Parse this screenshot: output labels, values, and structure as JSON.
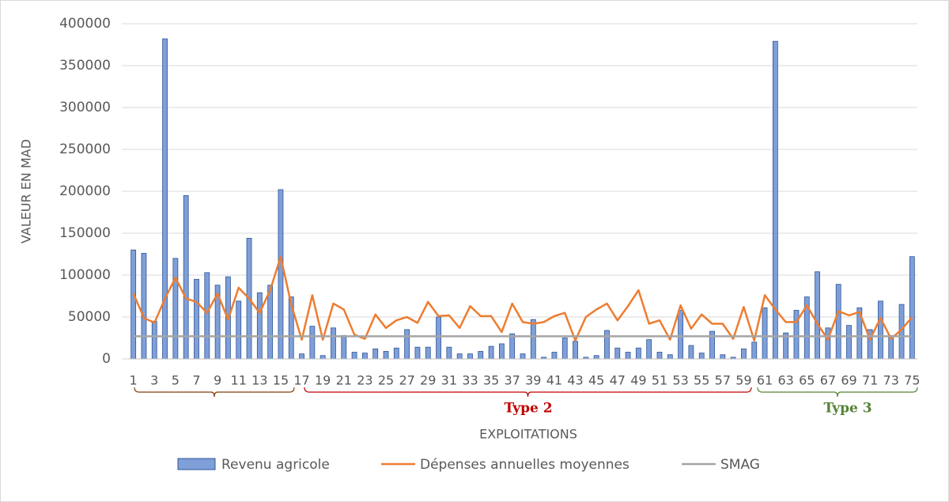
{
  "chart_data": {
    "type": "bar_line",
    "y_label": "VALEUR EN MAD",
    "x_label": "EXPLOITATIONS",
    "categories": [
      "1",
      null,
      "3",
      null,
      "5",
      null,
      "7",
      null,
      "9",
      null,
      "11",
      null,
      "13",
      null,
      "15",
      null,
      "17",
      null,
      "19",
      null,
      "21",
      null,
      "23",
      null,
      "25",
      null,
      "27",
      null,
      "29",
      null,
      "31",
      null,
      "33",
      null,
      "35",
      null,
      "37",
      null,
      "39",
      null,
      "41",
      null,
      "43",
      null,
      "45",
      null,
      "47",
      null,
      "49",
      null,
      "51",
      null,
      "53",
      null,
      "55",
      null,
      "57",
      null,
      "59",
      null,
      "61",
      null,
      "63",
      null,
      "65",
      null,
      "67",
      null,
      "69",
      null,
      "71",
      null,
      "73",
      null,
      "75"
    ],
    "series": [
      {
        "name": "Revenu agricole",
        "kind": "bar",
        "color": "#7f9fd8",
        "stroke": "#2f5597",
        "values": [
          130000,
          126000,
          45000,
          382000,
          120000,
          195000,
          95000,
          103000,
          88000,
          98000,
          69000,
          144000,
          79000,
          88000,
          202000,
          74000,
          6000,
          39000,
          4000,
          37000,
          28000,
          8000,
          7000,
          12000,
          9000,
          13000,
          35000,
          14000,
          14000,
          50000,
          14000,
          6000,
          6000,
          9000,
          15000,
          18000,
          30000,
          6000,
          47000,
          2000,
          8000,
          25000,
          21000,
          2000,
          4000,
          34000,
          13000,
          8000,
          13000,
          23000,
          8000,
          5000,
          58000,
          16000,
          7000,
          33000,
          5000,
          2000,
          12000,
          20000,
          61000,
          379000,
          31000,
          58000,
          74000,
          104000,
          37000,
          89000,
          40000,
          61000,
          35000,
          69000,
          28000,
          65000,
          122000
        ]
      },
      {
        "name": "Dépenses annuelles moyennes",
        "kind": "line",
        "color": "#ed7d31",
        "values": [
          78000,
          49000,
          43000,
          72000,
          97000,
          72000,
          68000,
          55000,
          78000,
          47000,
          85000,
          72000,
          55000,
          82000,
          122000,
          65000,
          23000,
          76000,
          23000,
          66000,
          59000,
          29000,
          24000,
          53000,
          37000,
          46000,
          50000,
          43000,
          68000,
          51000,
          52000,
          37000,
          63000,
          51000,
          51000,
          32000,
          66000,
          44000,
          42000,
          44000,
          51000,
          55000,
          22000,
          50000,
          59000,
          66000,
          46000,
          63000,
          82000,
          42000,
          46000,
          23000,
          64000,
          36000,
          53000,
          42000,
          42000,
          24000,
          62000,
          22000,
          76000,
          59000,
          44000,
          44000,
          64000,
          42000,
          23000,
          57000,
          52000,
          56000,
          23000,
          49000,
          24000,
          35000,
          50000
        ]
      },
      {
        "name": "SMAG",
        "kind": "line",
        "color": "#a5a5a5",
        "values": [
          27000,
          27000,
          27000,
          27000,
          27000,
          27000,
          27000,
          27000,
          27000,
          27000,
          27000,
          27000,
          27000,
          27000,
          27000,
          27000,
          27000,
          27000,
          27000,
          27000,
          27000,
          27000,
          27000,
          27000,
          27000,
          27000,
          27000,
          27000,
          27000,
          27000,
          27000,
          27000,
          27000,
          27000,
          27000,
          27000,
          27000,
          27000,
          27000,
          27000,
          27000,
          27000,
          27000,
          27000,
          27000,
          27000,
          27000,
          27000,
          27000,
          27000,
          27000,
          27000,
          27000,
          27000,
          27000,
          27000,
          27000,
          27000,
          27000,
          27000,
          27000,
          27000,
          27000,
          27000,
          27000,
          27000,
          27000,
          27000,
          27000,
          27000,
          27000,
          27000,
          27000,
          27000,
          27000
        ]
      }
    ],
    "annotations": [
      {
        "text": "Type 2",
        "color": "#c00000"
      },
      {
        "text": "Type 3",
        "color": "#548235"
      }
    ],
    "ylim": [
      0,
      400000
    ],
    "yticks": [
      0,
      50000,
      100000,
      150000,
      200000,
      250000,
      300000,
      350000,
      400000
    ],
    "grid": true
  }
}
